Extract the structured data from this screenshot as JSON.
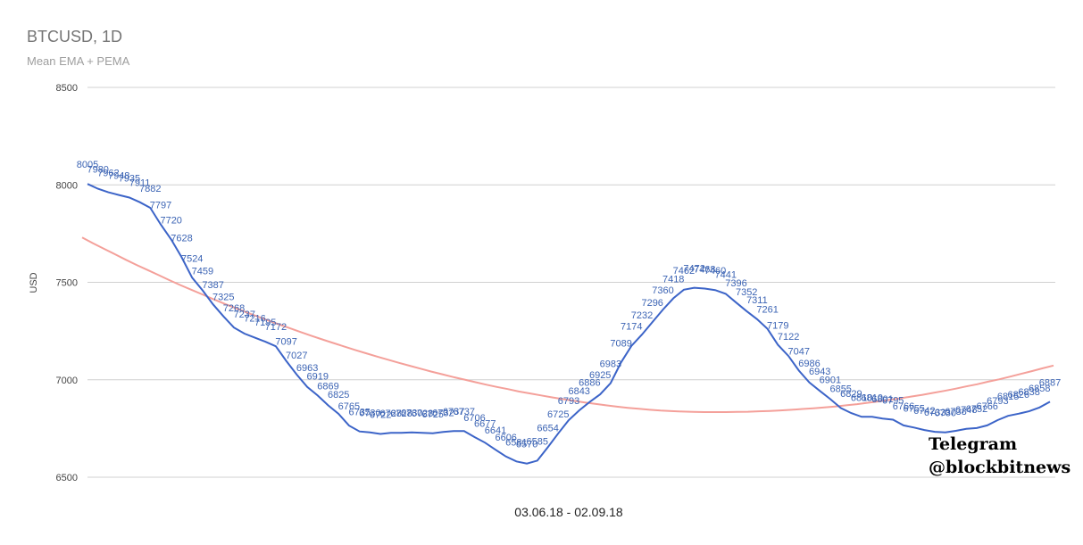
{
  "chart_data": {
    "type": "line",
    "title": "BTCUSD, 1D",
    "subtitle": "Mean EMA + PEMA",
    "xlabel": "03.06.18 - 02.09.18",
    "ylabel": "USD",
    "ylim": [
      6500,
      8500
    ],
    "yticks": [
      "8500",
      "8000",
      "7500",
      "7000",
      "6500"
    ],
    "grid": true,
    "legend": "none",
    "colors": {
      "mean_ema": "#3c64c8",
      "pema": "#f4a09a",
      "grid": "#d0d0d0"
    },
    "series": [
      {
        "key": "mean_ema",
        "values": [
          8005,
          7980,
          7962,
          7948,
          7935,
          7911,
          7882,
          7797,
          7720,
          7628,
          7524,
          7459,
          7387,
          7325,
          7268,
          7237,
          7216,
          7195,
          7172,
          7097,
          7027,
          6963,
          6919,
          6869,
          6825,
          6765,
          6735,
          6730,
          6722,
          6728,
          6728,
          6730,
          6728,
          6725,
          6732,
          6737,
          6737,
          6706,
          6677,
          6641,
          6606,
          6581,
          6570,
          6585,
          6654,
          6725,
          6793,
          6843,
          6886,
          6925,
          6983,
          7089,
          7174,
          7232,
          7296,
          7360,
          7418,
          7462,
          7472,
          7468,
          7460,
          7441,
          7396,
          7352,
          7311,
          7261,
          7179,
          7122,
          7047,
          6986,
          6943,
          6901,
          6855,
          6829,
          6810,
          6810,
          6801,
          6795,
          6766,
          6755,
          6742,
          6733,
          6730,
          6738,
          6748,
          6752,
          6766,
          6793,
          6815,
          6826,
          6838,
          6858,
          6887
        ]
      },
      {
        "key": "pema",
        "values": [
          7730,
          7700,
          7672,
          7644,
          7616,
          7589,
          7563,
          7537,
          7511,
          7486,
          7462,
          7438,
          7414,
          7391,
          7369,
          7347,
          7326,
          7305,
          7285,
          7265,
          7245,
          7226,
          7207,
          7189,
          7171,
          7153,
          7136,
          7119,
          7103,
          7087,
          7072,
          7057,
          7042,
          7028,
          7014,
          7001,
          6988,
          6975,
          6963,
          6952,
          6940,
          6930,
          6920,
          6910,
          6901,
          6892,
          6884,
          6876,
          6869,
          6862,
          6856,
          6851,
          6846,
          6842,
          6839,
          6837,
          6835,
          6834,
          6834,
          6834,
          6835,
          6836,
          6838,
          6840,
          6843,
          6846,
          6850,
          6854,
          6858,
          6863,
          6869,
          6875,
          6882,
          6889,
          6897,
          6905,
          6914,
          6923,
          6933,
          6943,
          6954,
          6966,
          6977,
          6990,
          7002,
          7016,
          7030,
          7044,
          7059,
          7073
        ]
      }
    ],
    "data_labels": [
      {
        "i": 0,
        "text": "8005"
      },
      {
        "i": 1,
        "text": "7980"
      },
      {
        "i": 2,
        "text": "7962"
      },
      {
        "i": 3,
        "text": "7948"
      },
      {
        "i": 4,
        "text": "7935"
      },
      {
        "i": 5,
        "text": "7911"
      },
      {
        "i": 6,
        "text": "7882"
      },
      {
        "i": 7,
        "text": "7797"
      },
      {
        "i": 8,
        "text": "7720"
      },
      {
        "i": 9,
        "text": "7628"
      },
      {
        "i": 10,
        "text": "7524"
      },
      {
        "i": 11,
        "text": "7459"
      },
      {
        "i": 12,
        "text": "7387"
      },
      {
        "i": 13,
        "text": "7325"
      },
      {
        "i": 14,
        "text": "7268"
      },
      {
        "i": 15,
        "text": "7237"
      },
      {
        "i": 16,
        "text": "7216"
      },
      {
        "i": 17,
        "text": "7195"
      },
      {
        "i": 18,
        "text": "7172"
      },
      {
        "i": 19,
        "text": "7097"
      },
      {
        "i": 20,
        "text": "7027"
      },
      {
        "i": 21,
        "text": "6963"
      },
      {
        "i": 22,
        "text": "6919"
      },
      {
        "i": 23,
        "text": "6869"
      },
      {
        "i": 24,
        "text": "6825"
      },
      {
        "i": 25,
        "text": "6765"
      },
      {
        "i": 26,
        "text": "6735"
      },
      {
        "i": 27,
        "text": "6730"
      },
      {
        "i": 28,
        "text": "6722"
      },
      {
        "i": 29,
        "text": "6728"
      },
      {
        "i": 30,
        "text": "6728"
      },
      {
        "i": 31,
        "text": "6730"
      },
      {
        "i": 32,
        "text": "6728"
      },
      {
        "i": 33,
        "text": "6725"
      },
      {
        "i": 34,
        "text": "6732"
      },
      {
        "i": 35,
        "text": "6737"
      },
      {
        "i": 36,
        "text": "6737"
      },
      {
        "i": 37,
        "text": "6706"
      },
      {
        "i": 38,
        "text": "6677"
      },
      {
        "i": 39,
        "text": "6641"
      },
      {
        "i": 40,
        "text": "6606"
      },
      {
        "i": 41,
        "text": "6581"
      },
      {
        "i": 42,
        "text": "6570"
      },
      {
        "i": 43,
        "text": "6585"
      },
      {
        "i": 44,
        "text": "6654"
      },
      {
        "i": 45,
        "text": "6725"
      },
      {
        "i": 46,
        "text": "6793"
      },
      {
        "i": 47,
        "text": "6843"
      },
      {
        "i": 48,
        "text": "6886"
      },
      {
        "i": 49,
        "text": "6925"
      },
      {
        "i": 50,
        "text": "6983"
      },
      {
        "i": 51,
        "text": "7089"
      },
      {
        "i": 52,
        "text": "7174"
      },
      {
        "i": 53,
        "text": "7232"
      },
      {
        "i": 54,
        "text": "7296"
      },
      {
        "i": 55,
        "text": "7360"
      },
      {
        "i": 56,
        "text": "7418"
      },
      {
        "i": 57,
        "text": "7462"
      },
      {
        "i": 58,
        "text": "7472"
      },
      {
        "i": 59,
        "text": "7468"
      },
      {
        "i": 60,
        "text": "7460"
      },
      {
        "i": 61,
        "text": "7441"
      },
      {
        "i": 62,
        "text": "7396"
      },
      {
        "i": 63,
        "text": "7352"
      },
      {
        "i": 64,
        "text": "7311"
      },
      {
        "i": 65,
        "text": "7261"
      },
      {
        "i": 66,
        "text": "7179"
      },
      {
        "i": 67,
        "text": "7122"
      },
      {
        "i": 68,
        "text": "7047"
      },
      {
        "i": 69,
        "text": "6986"
      },
      {
        "i": 70,
        "text": "6943"
      },
      {
        "i": 71,
        "text": "6901"
      },
      {
        "i": 72,
        "text": "6855"
      },
      {
        "i": 73,
        "text": "6829"
      },
      {
        "i": 74,
        "text": "6810"
      },
      {
        "i": 75,
        "text": "6810"
      },
      {
        "i": 76,
        "text": "6801"
      },
      {
        "i": 77,
        "text": "6795"
      },
      {
        "i": 78,
        "text": "6766"
      },
      {
        "i": 79,
        "text": "6755"
      },
      {
        "i": 80,
        "text": "6742"
      },
      {
        "i": 81,
        "text": "6733"
      },
      {
        "i": 82,
        "text": "6730"
      },
      {
        "i": 83,
        "text": "6738"
      },
      {
        "i": 84,
        "text": "6748"
      },
      {
        "i": 85,
        "text": "6752"
      },
      {
        "i": 86,
        "text": "6766"
      },
      {
        "i": 87,
        "text": "6793"
      },
      {
        "i": 88,
        "text": "6815"
      },
      {
        "i": 89,
        "text": "6826"
      },
      {
        "i": 90,
        "text": "6838"
      },
      {
        "i": 91,
        "text": "6858"
      },
      {
        "i": 92,
        "text": "6887"
      }
    ]
  },
  "watermark": {
    "line1": "Telegram",
    "line2": "@blockbitnews"
  }
}
